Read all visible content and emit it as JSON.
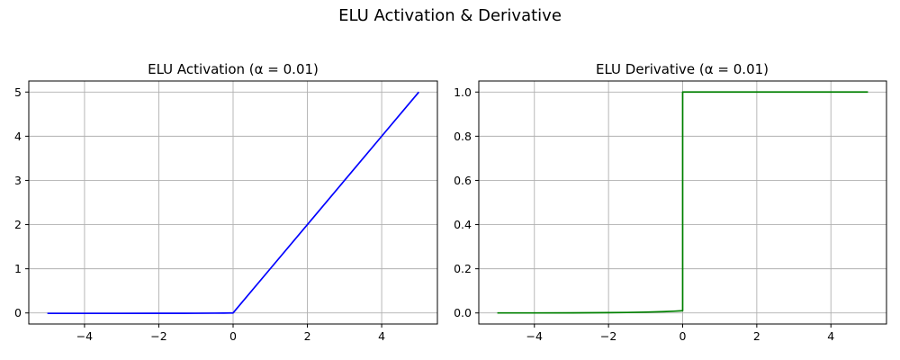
{
  "figure": {
    "title": "ELU Activation & Derivative"
  },
  "chart_data": [
    {
      "type": "line",
      "title": "ELU Activation (α = 0.01)",
      "xlabel": "",
      "ylabel": "",
      "xlim": [
        -5.5,
        5.5
      ],
      "ylim": [
        -0.25,
        5.25
      ],
      "xticks": [
        -4,
        -2,
        0,
        2,
        4
      ],
      "xtick_labels": [
        "−4",
        "−2",
        "0",
        "2",
        "4"
      ],
      "yticks": [
        0,
        1,
        2,
        3,
        4,
        5
      ],
      "ytick_labels": [
        "0",
        "1",
        "2",
        "3",
        "4",
        "5"
      ],
      "grid": true,
      "series": [
        {
          "color": "#0000ff",
          "x": [
            -5,
            -4,
            -3,
            -2,
            -1.5,
            -1,
            -0.5,
            -0.25,
            0,
            1,
            2,
            3,
            4,
            5
          ],
          "y": [
            -0.00993,
            -0.00982,
            -0.0095,
            -0.00865,
            -0.00777,
            -0.00632,
            -0.00393,
            -0.00221,
            0,
            1,
            2,
            3,
            4,
            5
          ]
        }
      ]
    },
    {
      "type": "line",
      "title": "ELU Derivative (α = 0.01)",
      "xlabel": "",
      "ylabel": "",
      "xlim": [
        -5.5,
        5.5
      ],
      "ylim": [
        -0.05,
        1.05
      ],
      "xticks": [
        -4,
        -2,
        0,
        2,
        4
      ],
      "xtick_labels": [
        "−4",
        "−2",
        "0",
        "2",
        "4"
      ],
      "yticks": [
        0.0,
        0.2,
        0.4,
        0.6,
        0.8,
        1.0
      ],
      "ytick_labels": [
        "0.0",
        "0.2",
        "0.4",
        "0.6",
        "0.8",
        "1.0"
      ],
      "grid": true,
      "series": [
        {
          "color": "#008000",
          "x": [
            -5,
            -4,
            -3,
            -2,
            -1.5,
            -1,
            -0.5,
            -0.25,
            0,
            0,
            1,
            2,
            3,
            4,
            5
          ],
          "y": [
            6.74e-05,
            0.000183,
            0.000498,
            0.00135,
            0.00223,
            0.00368,
            0.00607,
            0.00779,
            0.01,
            1,
            1,
            1,
            1,
            1,
            1
          ]
        }
      ]
    }
  ]
}
